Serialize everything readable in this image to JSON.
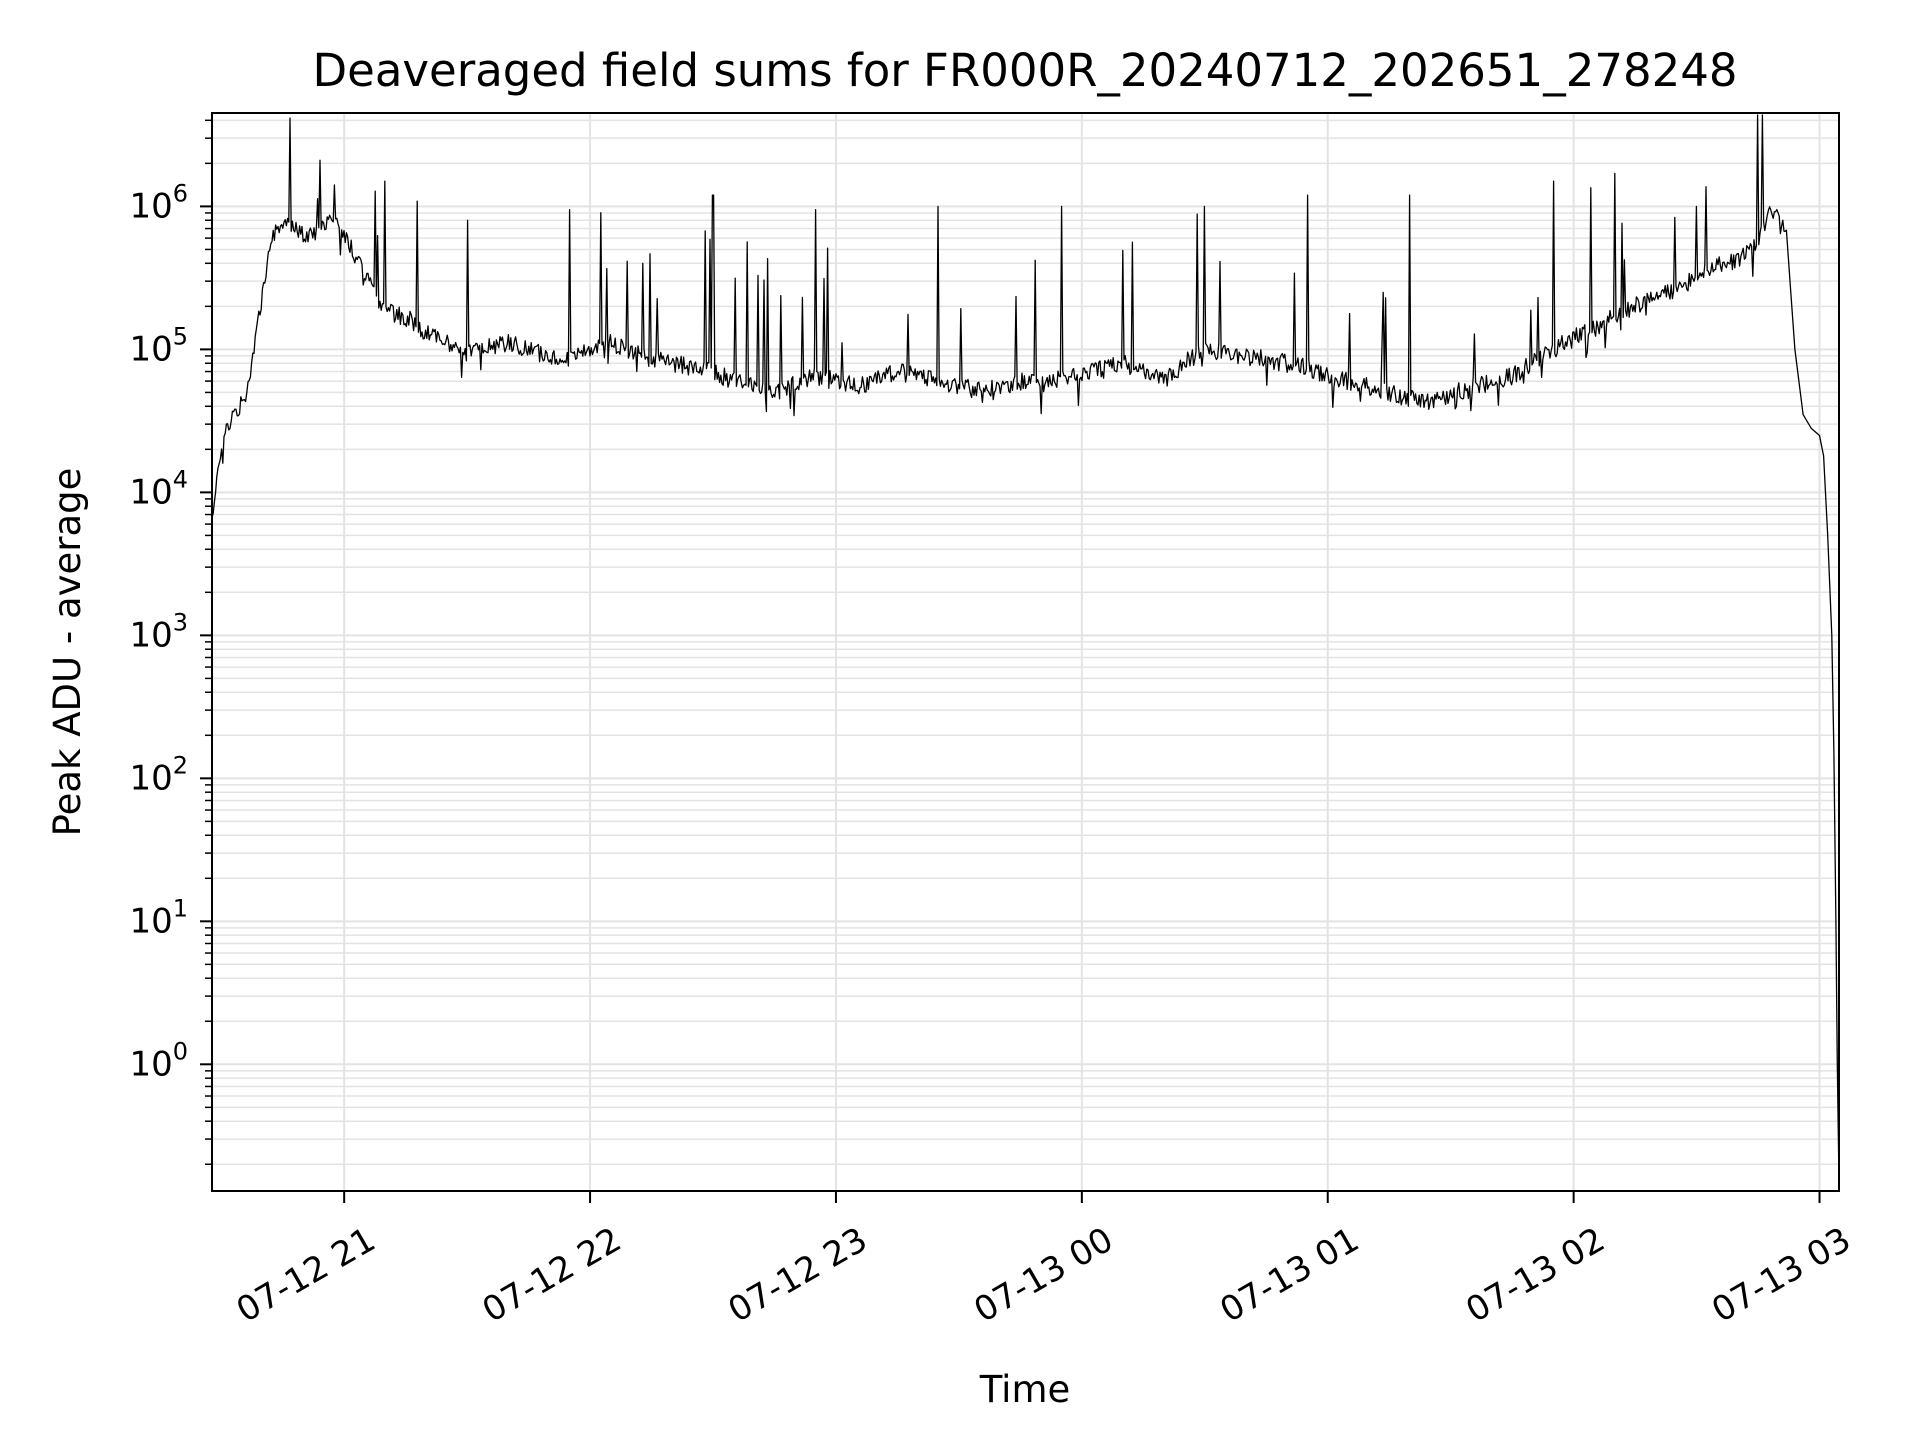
{
  "chart_data": {
    "type": "line",
    "title": "Deaveraged field sums for FR000R_20240712_202651_278248",
    "xlabel": "Time",
    "ylabel": "Peak ADU - average",
    "yscale": "log",
    "ylim": [
      0.13,
      4500000
    ],
    "xlim": [
      "07-12 20:27:45",
      "07-13 03:04:45"
    ],
    "grid": "on (major and minor, both axes)",
    "line_color": "#000000",
    "grid_color": "#e3e3e3",
    "x_ticks": [
      {
        "label": "07-12 21",
        "value": "07-12 21:00"
      },
      {
        "label": "07-12 22",
        "value": "07-12 22:00"
      },
      {
        "label": "07-12 23",
        "value": "07-12 23:00"
      },
      {
        "label": "07-13 00",
        "value": "07-13 00:00"
      },
      {
        "label": "07-13 01",
        "value": "07-13 01:00"
      },
      {
        "label": "07-13 02",
        "value": "07-13 02:00"
      },
      {
        "label": "07-13 03",
        "value": "07-13 03:00"
      }
    ],
    "y_ticks": [
      {
        "base": "10",
        "exp": "0",
        "value": 1
      },
      {
        "base": "10",
        "exp": "1",
        "value": 10
      },
      {
        "base": "10",
        "exp": "2",
        "value": 100
      },
      {
        "base": "10",
        "exp": "3",
        "value": 1000
      },
      {
        "base": "10",
        "exp": "4",
        "value": 10000
      },
      {
        "base": "10",
        "exp": "5",
        "value": 100000
      },
      {
        "base": "10",
        "exp": "6",
        "value": 1000000
      }
    ],
    "series": [
      {
        "x": [
          "07-12 20:27:45",
          "07-12 20:29",
          "07-12 20:31",
          "07-12 20:33",
          "07-12 20:36",
          "07-12 20:39",
          "07-12 20:42",
          "07-12 20:45",
          "07-12 20:48",
          "07-12 20:51",
          "07-12 20:54",
          "07-12 20:57",
          "07-12 20:59",
          "07-12 21:02",
          "07-12 21:05",
          "07-12 21:08",
          "07-12 21:12",
          "07-12 21:16",
          "07-12 21:20",
          "07-12 21:25",
          "07-12 21:30",
          "07-12 21:35",
          "07-12 21:40",
          "07-12 21:45",
          "07-12 21:50",
          "07-12 21:55",
          "07-12 22:00",
          "07-12 22:05",
          "07-12 22:10",
          "07-12 22:15",
          "07-12 22:20",
          "07-12 22:25",
          "07-12 22:30",
          "07-12 22:35",
          "07-12 22:40",
          "07-12 22:45",
          "07-12 22:50",
          "07-12 22:55",
          "07-12 23:00",
          "07-12 23:05",
          "07-12 23:10",
          "07-12 23:15",
          "07-12 23:20",
          "07-12 23:25",
          "07-12 23:30",
          "07-12 23:35",
          "07-12 23:40",
          "07-12 23:45",
          "07-12 23:50",
          "07-12 23:55",
          "07-13 00:00",
          "07-13 00:05",
          "07-13 00:10",
          "07-13 00:15",
          "07-13 00:20",
          "07-13 00:25",
          "07-13 00:30",
          "07-13 00:35",
          "07-13 00:40",
          "07-13 00:45",
          "07-13 00:50",
          "07-13 00:55",
          "07-13 01:00",
          "07-13 01:05",
          "07-13 01:10",
          "07-13 01:15",
          "07-13 01:20",
          "07-13 01:25",
          "07-13 01:30",
          "07-13 01:35",
          "07-13 01:40",
          "07-13 01:45",
          "07-13 01:50",
          "07-13 01:55",
          "07-13 02:00",
          "07-13 02:05",
          "07-13 02:10",
          "07-13 02:15",
          "07-13 02:20",
          "07-13 02:25",
          "07-13 02:30",
          "07-13 02:35",
          "07-13 02:40",
          "07-13 02:43",
          "07-13 02:46",
          "07-13 02:48",
          "07-13 02:50",
          "07-13 02:52",
          "07-13 02:53",
          "07-13 02:54",
          "07-13 02:56",
          "07-13 02:58",
          "07-13 03:00",
          "07-13 03:01",
          "07-13 03:02",
          "07-13 03:03",
          "07-13 03:03:30",
          "07-13 03:04",
          "07-13 03:04:20",
          "07-13 03:04:45"
        ],
        "y": [
          7000,
          14000,
          25000,
          35000,
          45000,
          150000,
          600000,
          800000,
          700000,
          600000,
          650000,
          800000,
          700000,
          500000,
          350000,
          220000,
          180000,
          160000,
          130000,
          110000,
          95000,
          105000,
          110000,
          100000,
          90000,
          85000,
          100000,
          110000,
          95000,
          85000,
          80000,
          75000,
          70000,
          60000,
          55000,
          50000,
          58000,
          65000,
          60000,
          55000,
          62000,
          70000,
          65000,
          60000,
          55000,
          52000,
          55000,
          60000,
          58000,
          62000,
          65000,
          75000,
          80000,
          70000,
          60000,
          80000,
          100000,
          95000,
          90000,
          85000,
          80000,
          75000,
          65000,
          60000,
          55000,
          50000,
          45000,
          42000,
          48000,
          55000,
          58000,
          65000,
          80000,
          100000,
          120000,
          140000,
          170000,
          200000,
          230000,
          260000,
          320000,
          380000,
          420000,
          480000,
          650000,
          900000,
          1000000,
          600000,
          250000,
          100000,
          35000,
          28000,
          25000,
          18000,
          5000,
          1000,
          150,
          10,
          1,
          0.15
        ]
      }
    ],
    "spikes": [
      {
        "x": "07-12 20:54",
        "y": 2100000
      },
      {
        "x": "07-12 21:10",
        "y": 1500000
      },
      {
        "x": "07-12 21:30",
        "y": 800000
      },
      {
        "x": "07-12 21:55",
        "y": 950000
      },
      {
        "x": "07-12 22:30",
        "y": 1200000
      },
      {
        "x": "07-12 22:55",
        "y": 950000
      },
      {
        "x": "07-12 23:25",
        "y": 1000000
      },
      {
        "x": "07-12 23:55",
        "y": 1000000
      },
      {
        "x": "07-13 00:30",
        "y": 1000000
      },
      {
        "x": "07-13 00:55",
        "y": 1200000
      },
      {
        "x": "07-13 01:20",
        "y": 1200000
      },
      {
        "x": "07-13 01:55",
        "y": 1500000
      },
      {
        "x": "07-13 02:10",
        "y": 1700000
      },
      {
        "x": "07-13 02:30",
        "y": 1000000
      }
    ]
  }
}
